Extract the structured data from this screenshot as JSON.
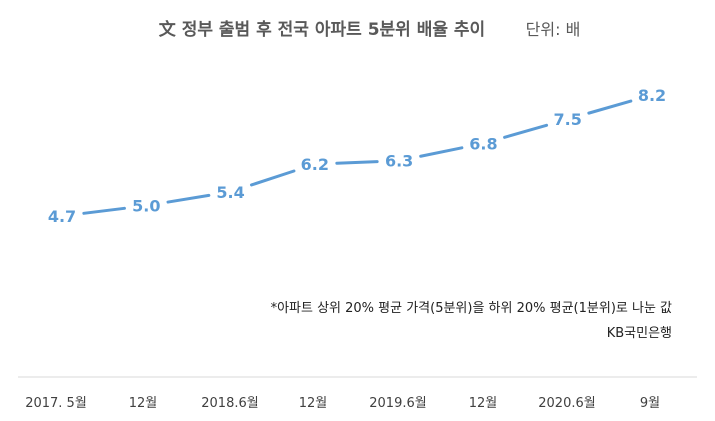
{
  "chart_data": {
    "type": "line",
    "title": "文 정부 출범 후 전국 아파트 5분위 배율 추이",
    "unit_label": "단위: 배",
    "categories": [
      "2017. 5월",
      "12월",
      "2018.6월",
      "12월",
      "2019.6월",
      "12월",
      "2020.6월",
      "9월"
    ],
    "series": [
      {
        "name": "5분위 배율",
        "values": [
          4.7,
          5.0,
          5.4,
          6.2,
          6.3,
          6.8,
          7.5,
          8.2
        ]
      }
    ],
    "value_labels": [
      "4.7",
      "5.0",
      "5.4",
      "6.2",
      "6.3",
      "6.8",
      "7.5",
      "8.2"
    ],
    "ylim": [
      3.5,
      9.0
    ],
    "grid": false,
    "line_color": "#5b9bd5",
    "label_color": "#5b9bd5",
    "note": "*아파트 상위 20% 평균 가격(5분위)을 하위 20% 평균(1분위)로 나눈 값",
    "source": "KB국민은행"
  }
}
